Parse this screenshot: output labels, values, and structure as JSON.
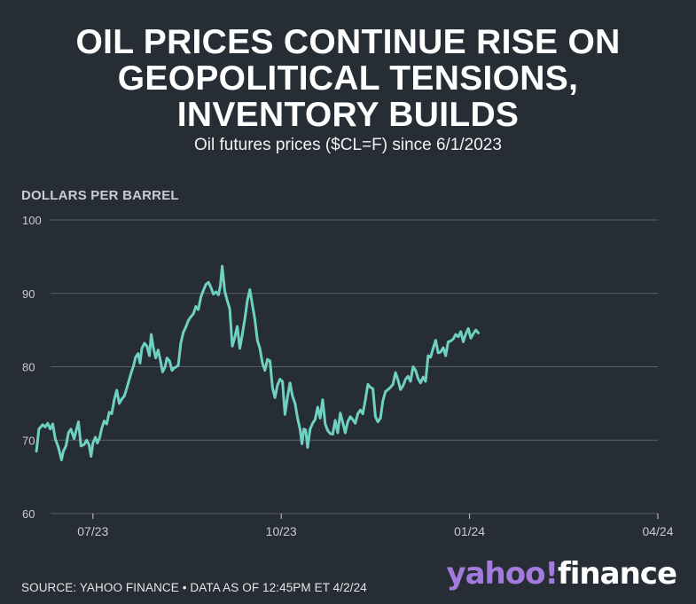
{
  "header": {
    "title": "OIL PRICES CONTINUE RISE ON\nGEOPOLITICAL TENSIONS,\nINVENTORY BUILDS",
    "subtitle": "Oil futures prices ($CL=F) since 6/1/2023"
  },
  "footer": {
    "source": "SOURCE: YAHOO FINANCE • DATA AS OF 12:45PM ET 4/2/24"
  },
  "logo": {
    "yahoo": "yahoo!",
    "finance": "finance"
  },
  "colors": {
    "background": "#272d35",
    "line": "#6fd1c2",
    "grid": "#5a6068",
    "logo_yahoo": "#a37bdc"
  },
  "chart_data": {
    "type": "line",
    "ylabel": "DOLLARS PER BARREL",
    "ylim": [
      60,
      100
    ],
    "yticks": [
      60,
      70,
      80,
      90,
      100
    ],
    "xticks": [
      {
        "x": 1,
        "label": "07/23"
      },
      {
        "x": 4,
        "label": "10/23"
      },
      {
        "x": 7,
        "label": "01/24"
      },
      {
        "x": 10,
        "label": "04/24"
      }
    ],
    "xlim": [
      0.1,
      10.03
    ],
    "grid": true,
    "series": [
      {
        "values": [
          [
            0.1,
            68.5
          ],
          [
            0.14,
            71.5
          ],
          [
            0.2,
            72.1
          ],
          [
            0.24,
            71.8
          ],
          [
            0.28,
            72.3
          ],
          [
            0.32,
            71.5
          ],
          [
            0.36,
            72.2
          ],
          [
            0.4,
            70.2
          ],
          [
            0.45,
            69.0
          ],
          [
            0.5,
            67.3
          ],
          [
            0.53,
            68.5
          ],
          [
            0.57,
            69.2
          ],
          [
            0.61,
            71.0
          ],
          [
            0.65,
            71.5
          ],
          [
            0.7,
            70.2
          ],
          [
            0.73,
            71.2
          ],
          [
            0.77,
            72.5
          ],
          [
            0.81,
            69.2
          ],
          [
            0.86,
            69.4
          ],
          [
            0.9,
            70.0
          ],
          [
            0.94,
            69.3
          ],
          [
            0.97,
            67.8
          ],
          [
            1.0,
            69.6
          ],
          [
            1.04,
            70.4
          ],
          [
            1.07,
            69.6
          ],
          [
            1.11,
            70.4
          ],
          [
            1.14,
            71.6
          ],
          [
            1.18,
            72.6
          ],
          [
            1.22,
            72.2
          ],
          [
            1.26,
            73.8
          ],
          [
            1.3,
            73.6
          ],
          [
            1.34,
            75.5
          ],
          [
            1.38,
            76.8
          ],
          [
            1.42,
            75.0
          ],
          [
            1.46,
            75.6
          ],
          [
            1.5,
            76.0
          ],
          [
            1.53,
            76.8
          ],
          [
            1.57,
            78.0
          ],
          [
            1.61,
            79.2
          ],
          [
            1.65,
            80.2
          ],
          [
            1.68,
            81.3
          ],
          [
            1.72,
            81.8
          ],
          [
            1.75,
            80.5
          ],
          [
            1.78,
            82.5
          ],
          [
            1.82,
            83.2
          ],
          [
            1.86,
            82.8
          ],
          [
            1.9,
            81.5
          ],
          [
            1.93,
            84.4
          ],
          [
            1.96,
            82.7
          ],
          [
            2.0,
            81.2
          ],
          [
            2.04,
            82.3
          ],
          [
            2.08,
            80.6
          ],
          [
            2.11,
            79.3
          ],
          [
            2.15,
            80.0
          ],
          [
            2.18,
            81.2
          ],
          [
            2.22,
            80.8
          ],
          [
            2.26,
            79.5
          ],
          [
            2.29,
            79.8
          ],
          [
            2.33,
            80.0
          ],
          [
            2.36,
            80.2
          ],
          [
            2.4,
            83.2
          ],
          [
            2.44,
            84.7
          ],
          [
            2.48,
            85.4
          ],
          [
            2.52,
            86.3
          ],
          [
            2.56,
            86.8
          ],
          [
            2.6,
            87.2
          ],
          [
            2.64,
            88.2
          ],
          [
            2.68,
            87.8
          ],
          [
            2.72,
            89.5
          ],
          [
            2.76,
            90.4
          ],
          [
            2.8,
            91.2
          ],
          [
            2.84,
            91.5
          ],
          [
            2.88,
            90.8
          ],
          [
            2.92,
            89.9
          ],
          [
            2.96,
            90.2
          ],
          [
            3.0,
            89.8
          ],
          [
            3.03,
            91.0
          ],
          [
            3.06,
            93.7
          ],
          [
            3.1,
            90.3
          ],
          [
            3.14,
            89.0
          ],
          [
            3.18,
            87.9
          ],
          [
            3.22,
            82.8
          ],
          [
            3.26,
            84.0
          ],
          [
            3.3,
            85.5
          ],
          [
            3.34,
            82.5
          ],
          [
            3.38,
            84.4
          ],
          [
            3.42,
            86.5
          ],
          [
            3.46,
            89.0
          ],
          [
            3.5,
            90.5
          ],
          [
            3.54,
            88.5
          ],
          [
            3.58,
            86.4
          ],
          [
            3.62,
            83.6
          ],
          [
            3.66,
            82.5
          ],
          [
            3.7,
            80.5
          ],
          [
            3.74,
            79.5
          ],
          [
            3.78,
            81.0
          ],
          [
            3.82,
            80.8
          ],
          [
            3.86,
            77.2
          ],
          [
            3.9,
            75.8
          ],
          [
            3.94,
            77.5
          ],
          [
            3.98,
            78.3
          ],
          [
            4.02,
            78.0
          ],
          [
            4.06,
            73.5
          ],
          [
            4.1,
            75.9
          ],
          [
            4.14,
            77.8
          ],
          [
            4.18,
            76.0
          ],
          [
            4.22,
            75.0
          ],
          [
            4.26,
            73.0
          ],
          [
            4.3,
            71.5
          ],
          [
            4.33,
            69.5
          ],
          [
            4.36,
            71.5
          ],
          [
            4.39,
            71.4
          ],
          [
            4.42,
            69.0
          ],
          [
            4.46,
            71.5
          ],
          [
            4.5,
            72.3
          ],
          [
            4.54,
            72.8
          ],
          [
            4.58,
            74.5
          ],
          [
            4.62,
            73.0
          ],
          [
            4.66,
            75.5
          ],
          [
            4.7,
            72.2
          ],
          [
            4.74,
            71.3
          ],
          [
            4.78,
            70.9
          ],
          [
            4.82,
            70.8
          ],
          [
            4.86,
            72.7
          ],
          [
            4.9,
            71.0
          ],
          [
            4.94,
            73.7
          ],
          [
            4.98,
            72.4
          ],
          [
            5.02,
            71.0
          ],
          [
            5.06,
            72.5
          ],
          [
            5.1,
            73.2
          ],
          [
            5.14,
            72.8
          ],
          [
            5.18,
            72.3
          ],
          [
            5.22,
            73.6
          ],
          [
            5.26,
            74.1
          ],
          [
            5.3,
            73.6
          ],
          [
            5.34,
            75.5
          ],
          [
            5.38,
            77.6
          ],
          [
            5.42,
            77.2
          ],
          [
            5.46,
            77.0
          ],
          [
            5.5,
            73.2
          ],
          [
            5.54,
            72.5
          ],
          [
            5.58,
            73.0
          ],
          [
            5.62,
            75.4
          ],
          [
            5.66,
            76.6
          ],
          [
            5.7,
            76.9
          ],
          [
            5.74,
            77.2
          ],
          [
            5.78,
            77.6
          ],
          [
            5.82,
            79.2
          ],
          [
            5.86,
            78.2
          ],
          [
            5.9,
            76.9
          ],
          [
            5.94,
            77.4
          ],
          [
            5.98,
            78.3
          ],
          [
            6.02,
            78.7
          ],
          [
            6.06,
            78.0
          ],
          [
            6.1,
            80.0
          ],
          [
            6.14,
            79.5
          ],
          [
            6.18,
            78.4
          ],
          [
            6.22,
            77.8
          ],
          [
            6.26,
            78.6
          ],
          [
            6.3,
            78.0
          ],
          [
            6.34,
            81.5
          ],
          [
            6.38,
            81.3
          ],
          [
            6.42,
            82.5
          ],
          [
            6.46,
            83.6
          ],
          [
            6.5,
            81.9
          ],
          [
            6.54,
            82.0
          ],
          [
            6.58,
            82.6
          ],
          [
            6.62,
            81.5
          ],
          [
            6.66,
            83.4
          ],
          [
            6.7,
            83.5
          ],
          [
            6.74,
            83.8
          ],
          [
            6.78,
            84.4
          ],
          [
            6.82,
            84.1
          ],
          [
            6.86,
            84.8
          ],
          [
            6.9,
            83.4
          ],
          [
            6.94,
            84.5
          ],
          [
            6.98,
            85.2
          ],
          [
            7.02,
            83.9
          ],
          [
            7.06,
            84.5
          ],
          [
            7.1,
            85.0
          ],
          [
            7.14,
            84.6
          ]
        ]
      }
    ]
  }
}
